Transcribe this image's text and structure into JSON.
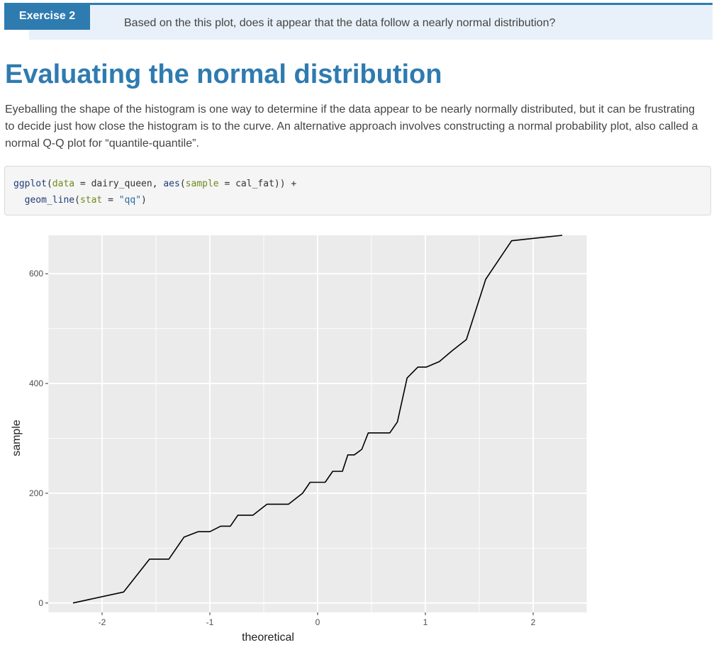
{
  "exercise": {
    "label": "Exercise 2",
    "question": "Based on the this plot, does it appear that the data follow a nearly normal distribution?"
  },
  "section": {
    "title": "Evaluating the normal distribution",
    "paragraph": "Eyeballing the shape of the histogram is one way to determine if the data appear to be nearly normally distributed, but it can be frustrating to decide just how close the histogram is to the curve. An alternative approach involves constructing a normal probability plot, also called a normal Q-Q plot for “quantile-quantile”."
  },
  "code": {
    "line1": {
      "fn1": "ggplot",
      "p1": "(",
      "arg1": "data",
      "p2": " = dairy_queen, ",
      "fn2": "aes",
      "p3": "(",
      "arg2": "sample",
      "p4": " = cal_fat)) +"
    },
    "line2": {
      "indent": "  ",
      "fn1": "geom_line",
      "p1": "(",
      "arg1": "stat",
      "p2": " = ",
      "str1": "\"qq\"",
      "p3": ")"
    }
  },
  "colors": {
    "accent": "#2e7bb0",
    "panel": "#ebebeb",
    "grid": "#ffffff",
    "line": "#000000"
  },
  "chart_data": {
    "type": "line",
    "xlabel": "theoretical",
    "ylabel": "sample",
    "xlim": [
      -2.5,
      2.5
    ],
    "ylim": [
      -17,
      670
    ],
    "x_ticks": [
      -2,
      -1,
      0,
      1,
      2
    ],
    "y_ticks": [
      0,
      200,
      400,
      600
    ],
    "grid": true,
    "series": [
      {
        "x": [
          -2.27,
          -1.8,
          -1.56,
          -1.38,
          -1.24,
          -1.11,
          -1.0,
          -0.9,
          -0.81,
          -0.74,
          -0.6,
          -0.47,
          -0.27,
          -0.14,
          -0.07,
          0.07,
          0.14,
          0.23,
          0.28,
          0.34,
          0.41,
          0.47,
          0.67,
          0.74,
          0.83,
          0.93,
          1.01,
          1.13,
          1.25,
          1.38,
          1.56,
          1.8,
          2.27
        ],
        "y": [
          0,
          20,
          80,
          80,
          120,
          130,
          130,
          140,
          140,
          160,
          160,
          180,
          180,
          200,
          220,
          220,
          240,
          240,
          270,
          270,
          280,
          310,
          310,
          330,
          410,
          430,
          430,
          440,
          460,
          480,
          590,
          660,
          670
        ]
      }
    ]
  }
}
